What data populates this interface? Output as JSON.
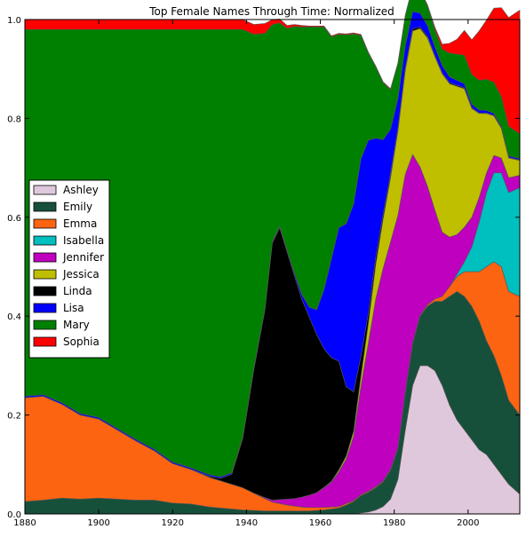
{
  "chart_data": {
    "type": "area",
    "stacked": true,
    "normalized": true,
    "title": "Top Female Names Through Time: Normalized",
    "xlabel": "",
    "ylabel": "",
    "xlim": [
      1880,
      2014
    ],
    "ylim": [
      0,
      1.0
    ],
    "xticks": [
      1880,
      1900,
      1920,
      1940,
      1960,
      1980,
      2000
    ],
    "yticks": [
      0.0,
      0.2,
      0.4,
      0.6,
      0.8,
      1.0
    ],
    "ytick_labels": [
      "0.0",
      "0.2",
      "0.4",
      "0.6",
      "0.8",
      "1.0"
    ],
    "grid": false,
    "legend_position": "center-left",
    "x": [
      1880,
      1885,
      1890,
      1895,
      1900,
      1905,
      1910,
      1915,
      1920,
      1925,
      1930,
      1933,
      1936,
      1939,
      1942,
      1945,
      1947,
      1949,
      1951,
      1953,
      1955,
      1957,
      1959,
      1961,
      1963,
      1965,
      1967,
      1969,
      1971,
      1973,
      1975,
      1977,
      1979,
      1981,
      1983,
      1985,
      1987,
      1989,
      1991,
      1993,
      1995,
      1997,
      1999,
      2001,
      2003,
      2005,
      2007,
      2009,
      2011,
      2014
    ],
    "series": [
      {
        "name": "Ashley",
        "color": "#e0c8dc",
        "values": [
          0,
          0,
          0,
          0,
          0,
          0,
          0,
          0,
          0,
          0,
          0,
          0,
          0,
          0,
          0,
          0,
          0,
          0,
          0,
          0,
          0,
          0,
          0,
          0,
          0,
          0,
          0,
          0,
          0.002,
          0.004,
          0.008,
          0.015,
          0.03,
          0.07,
          0.17,
          0.26,
          0.3,
          0.3,
          0.29,
          0.26,
          0.22,
          0.19,
          0.17,
          0.15,
          0.13,
          0.12,
          0.1,
          0.08,
          0.06,
          0.04
        ]
      },
      {
        "name": "Emily",
        "color": "#17503a",
        "values": [
          0.025,
          0.028,
          0.032,
          0.03,
          0.032,
          0.03,
          0.028,
          0.028,
          0.022,
          0.02,
          0.014,
          0.012,
          0.01,
          0.008,
          0.007,
          0.006,
          0.006,
          0.006,
          0.006,
          0.006,
          0.006,
          0.006,
          0.007,
          0.008,
          0.01,
          0.012,
          0.018,
          0.025,
          0.035,
          0.04,
          0.045,
          0.05,
          0.058,
          0.062,
          0.075,
          0.085,
          0.1,
          0.12,
          0.14,
          0.17,
          0.22,
          0.26,
          0.27,
          0.27,
          0.26,
          0.23,
          0.22,
          0.2,
          0.17,
          0.16
        ]
      },
      {
        "name": "Emma",
        "color": "#fd6411",
        "values": [
          0.21,
          0.21,
          0.19,
          0.17,
          0.16,
          0.14,
          0.12,
          0.1,
          0.08,
          0.07,
          0.06,
          0.055,
          0.05,
          0.045,
          0.035,
          0.025,
          0.018,
          0.015,
          0.012,
          0.01,
          0.008,
          0.007,
          0.006,
          0.005,
          0.004,
          0.003,
          0.003,
          0.002,
          0.002,
          0.002,
          0.002,
          0.002,
          0.002,
          0.002,
          0.002,
          0.002,
          0.002,
          0.003,
          0.005,
          0.01,
          0.02,
          0.03,
          0.05,
          0.07,
          0.1,
          0.15,
          0.19,
          0.22,
          0.22,
          0.24
        ]
      },
      {
        "name": "Isabella",
        "color": "#00bfbf",
        "values": [
          0,
          0,
          0,
          0,
          0,
          0,
          0,
          0,
          0,
          0,
          0,
          0,
          0,
          0,
          0,
          0,
          0,
          0,
          0,
          0,
          0,
          0,
          0,
          0,
          0,
          0,
          0,
          0,
          0,
          0,
          0,
          0,
          0,
          0,
          0,
          0,
          0,
          0,
          0,
          0,
          0,
          0.005,
          0.02,
          0.05,
          0.1,
          0.15,
          0.18,
          0.19,
          0.2,
          0.22
        ]
      },
      {
        "name": "Jennifer",
        "color": "#bf00bf",
        "values": [
          0,
          0,
          0,
          0,
          0,
          0,
          0,
          0,
          0,
          0,
          0,
          0,
          0,
          0,
          0,
          0.002,
          0.004,
          0.008,
          0.012,
          0.015,
          0.02,
          0.025,
          0.03,
          0.04,
          0.05,
          0.07,
          0.09,
          0.13,
          0.22,
          0.3,
          0.38,
          0.43,
          0.46,
          0.47,
          0.44,
          0.38,
          0.3,
          0.24,
          0.18,
          0.13,
          0.1,
          0.08,
          0.07,
          0.06,
          0.05,
          0.04,
          0.035,
          0.03,
          0.03,
          0.025
        ]
      },
      {
        "name": "Jessica",
        "color": "#bfbf00",
        "values": [
          0,
          0,
          0,
          0,
          0,
          0,
          0,
          0,
          0,
          0,
          0,
          0,
          0,
          0,
          0,
          0,
          0,
          0,
          0,
          0,
          0,
          0,
          0,
          0.001,
          0.002,
          0.004,
          0.006,
          0.01,
          0.02,
          0.04,
          0.07,
          0.1,
          0.13,
          0.17,
          0.21,
          0.25,
          0.28,
          0.3,
          0.31,
          0.32,
          0.31,
          0.3,
          0.28,
          0.22,
          0.17,
          0.12,
          0.08,
          0.06,
          0.04,
          0.03
        ]
      },
      {
        "name": "Linda",
        "color": "#000000",
        "values": [
          0,
          0,
          0,
          0,
          0,
          0,
          0,
          0,
          0,
          0,
          0.002,
          0.005,
          0.02,
          0.1,
          0.25,
          0.38,
          0.52,
          0.55,
          0.5,
          0.45,
          0.4,
          0.36,
          0.32,
          0.28,
          0.25,
          0.22,
          0.14,
          0.08,
          0.04,
          0.02,
          0.015,
          0.01,
          0.008,
          0.006,
          0.005,
          0.004,
          0.003,
          0.003,
          0.002,
          0.002,
          0.002,
          0.002,
          0.002,
          0.002,
          0.001,
          0.001,
          0.001,
          0.001,
          0.001,
          0.001
        ]
      },
      {
        "name": "Lisa",
        "color": "#0000ff",
        "values": [
          0.003,
          0.003,
          0.003,
          0.003,
          0.003,
          0.003,
          0.003,
          0.003,
          0.003,
          0.003,
          0.003,
          0.003,
          0.003,
          0.003,
          0.003,
          0.003,
          0.003,
          0.003,
          0.004,
          0.006,
          0.01,
          0.02,
          0.05,
          0.12,
          0.2,
          0.27,
          0.33,
          0.38,
          0.4,
          0.35,
          0.24,
          0.15,
          0.09,
          0.06,
          0.045,
          0.035,
          0.028,
          0.022,
          0.018,
          0.015,
          0.012,
          0.01,
          0.008,
          0.007,
          0.006,
          0.005,
          0.004,
          0.003,
          0.003,
          0.003
        ]
      },
      {
        "name": "Mary",
        "color": "#008000",
        "values": [
          0.742,
          0.739,
          0.755,
          0.777,
          0.785,
          0.807,
          0.829,
          0.849,
          0.875,
          0.887,
          0.901,
          0.905,
          0.897,
          0.824,
          0.675,
          0.556,
          0.439,
          0.411,
          0.448,
          0.499,
          0.541,
          0.567,
          0.572,
          0.531,
          0.449,
          0.391,
          0.382,
          0.344,
          0.249,
          0.176,
          0.144,
          0.115,
          0.08,
          0.07,
          0.06,
          0.05,
          0.045,
          0.04,
          0.035,
          0.033,
          0.048,
          0.053,
          0.058,
          0.06,
          0.06,
          0.063,
          0.063,
          0.06,
          0.06,
          0.05
        ]
      },
      {
        "name": "Sophia",
        "color": "#ff0000",
        "values": [
          0.02,
          0.02,
          0.02,
          0.02,
          0.02,
          0.02,
          0.02,
          0.02,
          0.02,
          0.02,
          0.02,
          0.02,
          0.02,
          0.02,
          0.02,
          0.02,
          0.01,
          0.008,
          0.006,
          0.004,
          0.003,
          0.002,
          0.002,
          0.002,
          0.002,
          0.002,
          0.002,
          0.002,
          0.002,
          0.002,
          0.002,
          0.002,
          0.002,
          0.002,
          0.002,
          0.002,
          0.002,
          0.002,
          0.005,
          0.01,
          0.02,
          0.03,
          0.05,
          0.07,
          0.1,
          0.12,
          0.15,
          0.18,
          0.22,
          0.25
        ]
      }
    ]
  }
}
